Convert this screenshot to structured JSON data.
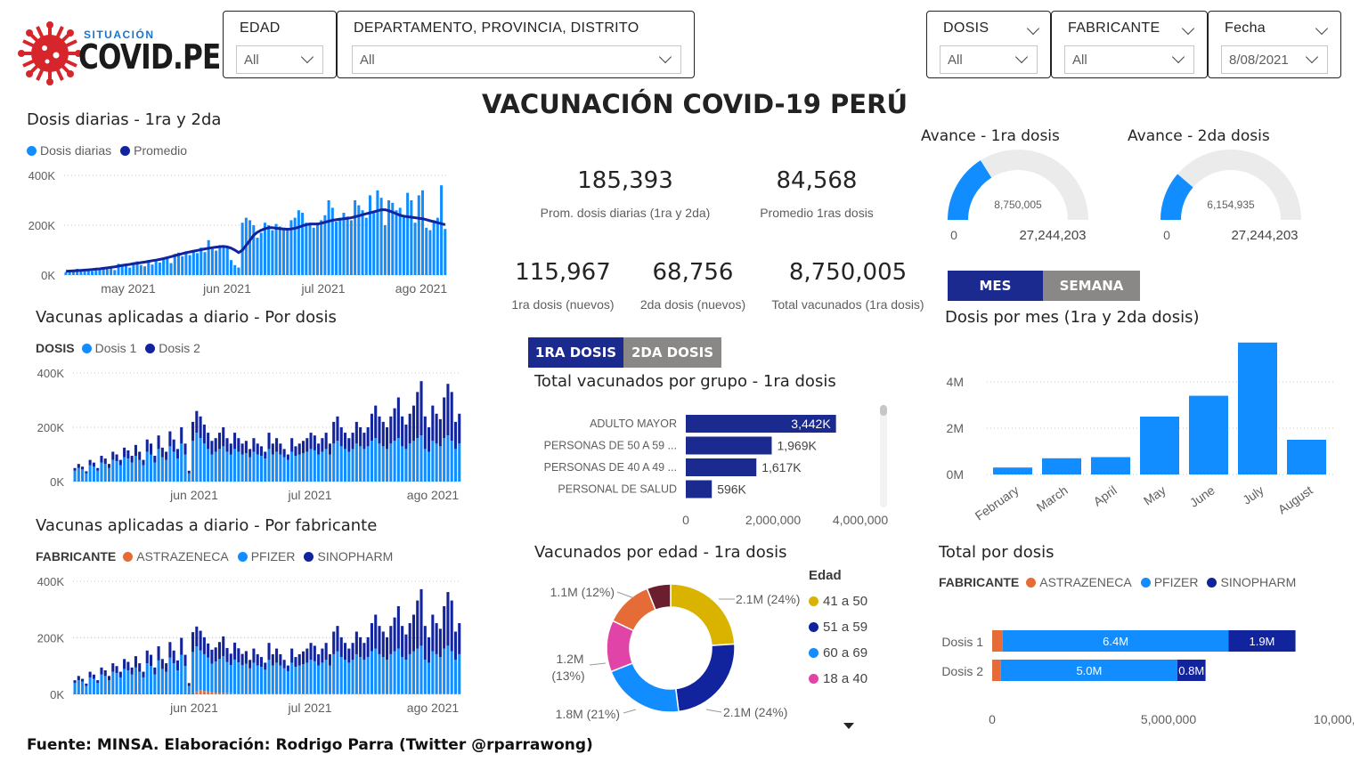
{
  "brand": {
    "top": "SITUACIÓN",
    "name": "COVID.PE"
  },
  "filters": {
    "edad": {
      "label": "EDAD",
      "value": "All"
    },
    "region": {
      "label": "DEPARTAMENTO, PROVINCIA, DISTRITO",
      "value": "All"
    },
    "dosis": {
      "label": "DOSIS",
      "value": "All"
    },
    "fabricante": {
      "label": "FABRICANTE",
      "value": "All"
    },
    "fecha": {
      "label": "Fecha",
      "value": "8/08/2021"
    }
  },
  "page_title": "VACUNACIÓN COVID-19 PERÚ",
  "kpis": {
    "k1": {
      "value": "185,393",
      "label": "Prom. dosis diarias (1ra y 2da)"
    },
    "k2": {
      "value": "84,568",
      "label": "Promedio 1ras dosis"
    },
    "k3": {
      "value": "115,967",
      "label": "1ra dosis (nuevos)"
    },
    "k4": {
      "value": "68,756",
      "label": "2da dosis (nuevos)"
    },
    "k5": {
      "value": "8,750,005",
      "label": "Total vacunados (1ra dosis)"
    }
  },
  "gauges": {
    "g1": {
      "title": "Avance - 1ra dosis",
      "value_label": "8,750,005",
      "min": "0",
      "max": "27,244,203",
      "value": 8750005,
      "max_value": 27244203
    },
    "g2": {
      "title": "Avance - 2da dosis",
      "value_label": "6,154,935",
      "min": "0",
      "max": "27,244,203",
      "value": 6154935,
      "max_value": 27244203
    }
  },
  "toggles": {
    "dosis_tab": {
      "a": "1RA DOSIS",
      "b": "2DA DOSIS"
    },
    "period_tab": {
      "a": "MES",
      "b": "SEMANA"
    }
  },
  "cards": {
    "diarias": {
      "title": "Dosis diarias - 1ra y 2da",
      "leg1": "Dosis diarias",
      "leg2": "Promedio"
    },
    "por_dosis": {
      "title": "Vacunas aplicadas a diario - Por dosis",
      "leg_title": "DOSIS",
      "leg1": "Dosis 1",
      "leg2": "Dosis 2"
    },
    "por_fab": {
      "title": "Vacunas aplicadas a diario - Por fabricante",
      "leg_title": "FABRICANTE",
      "leg1": "ASTRAZENECA",
      "leg2": "PFIZER",
      "leg3": "SINOPHARM"
    },
    "grupo": {
      "title": "Total vacunados por grupo - 1ra dosis"
    },
    "edad": {
      "title": "Vacunados por edad - 1ra dosis",
      "leg_title": "Edad"
    },
    "mes": {
      "title": "Dosis por mes (1ra y 2da dosis)"
    },
    "total": {
      "title": "Total por dosis",
      "leg_title": "FABRICANTE",
      "leg1": "ASTRAZENECA",
      "leg2": "PFIZER",
      "leg3": "SINOPHARM"
    }
  },
  "footer": "Fuente: MINSA. Elaboración: Rodrigo Parra (Twitter @rparrawong)",
  "colors": {
    "light_blue": "#118dff",
    "dark_blue": "#12239e",
    "orange": "#e66c37",
    "gold": "#d9b300",
    "pink": "#e044a7",
    "maroon": "#6b1f2e",
    "bar_navy": "#1b2a8f"
  },
  "chart_data": [
    {
      "id": "diarias",
      "type": "bar",
      "title": "Dosis diarias - 1ra y 2da",
      "ylim": [
        0,
        400000
      ],
      "yticks": [
        "0K",
        "200K",
        "400K"
      ],
      "xticks": [
        "may 2021",
        "jun 2021",
        "jul 2021",
        "ago 2021"
      ],
      "series": [
        {
          "name": "Dosis diarias",
          "values": [
            12,
            20,
            15,
            25,
            18,
            22,
            18,
            16,
            28,
            22,
            30,
            24,
            35,
            20,
            45,
            40,
            38,
            30,
            48,
            55,
            40,
            35,
            60,
            42,
            55,
            50,
            62,
            70,
            48,
            85,
            90,
            75,
            95,
            80,
            100,
            88,
            110,
            92,
            140,
            105,
            98,
            120,
            115,
            110,
            60,
            40,
            30,
            210,
            230,
            220,
            200,
            150,
            170,
            210,
            200,
            180,
            205,
            195,
            190,
            180,
            220,
            230,
            260,
            250,
            210,
            200,
            190,
            210,
            220,
            240,
            300,
            270,
            215,
            230,
            250,
            235,
            220,
            300,
            280,
            260,
            230,
            320,
            250,
            340,
            310,
            200,
            300,
            290,
            260,
            270,
            240,
            330,
            300,
            210,
            320,
            340,
            190,
            180,
            220,
            230,
            360,
            185
          ]
        },
        {
          "name": "Promedio",
          "values": [
            15,
            16,
            17,
            18,
            19,
            20,
            21,
            22,
            24,
            25,
            27,
            29,
            31,
            33,
            36,
            39,
            41,
            43,
            46,
            48,
            50,
            52,
            55,
            58,
            60,
            63,
            66,
            70,
            74,
            78,
            82,
            86,
            90,
            93,
            96,
            99,
            102,
            105,
            108,
            110,
            112,
            114,
            115,
            113,
            108,
            100,
            90,
            100,
            120,
            140,
            160,
            172,
            180,
            186,
            190,
            190,
            188,
            186,
            185,
            184,
            185,
            188,
            192,
            198,
            202,
            205,
            205,
            205,
            208,
            212,
            216,
            220,
            222,
            224,
            226,
            228,
            230,
            234,
            238,
            242,
            246,
            250,
            254,
            258,
            262,
            262,
            258,
            252,
            246,
            240,
            236,
            234,
            232,
            230,
            228,
            226,
            222,
            218,
            214,
            210,
            206,
            202
          ]
        }
      ]
    },
    {
      "id": "por_dosis",
      "type": "bar",
      "title": "Vacunas aplicadas a diario - Por dosis",
      "ylim": [
        0,
        400000
      ],
      "yticks": [
        "0K",
        "200K",
        "400K"
      ],
      "xticks": [
        "jun 2021",
        "jul 2021",
        "ago 2021"
      ],
      "series": [
        {
          "name": "Dosis 1",
          "values": [
            40,
            50,
            45,
            30,
            60,
            55,
            40,
            70,
            65,
            50,
            80,
            75,
            60,
            90,
            85,
            70,
            95,
            80,
            60,
            110,
            100,
            70,
            120,
            90,
            80,
            130,
            110,
            85,
            140,
            100,
            30,
            150,
            180,
            160,
            140,
            120,
            100,
            110,
            120,
            130,
            110,
            100,
            120,
            110,
            100,
            105,
            90,
            110,
            100,
            95,
            85,
            120,
            100,
            110,
            100,
            90,
            80,
            110,
            95,
            100,
            105,
            110,
            120,
            115,
            100,
            110,
            120,
            100,
            140,
            150,
            130,
            120,
            110,
            120,
            140,
            130,
            120,
            130,
            150,
            160,
            140,
            130,
            120,
            140,
            150,
            160,
            130,
            120,
            140,
            150,
            160,
            170,
            120,
            110,
            150,
            140,
            130,
            160,
            170,
            150,
            120,
            140
          ]
        },
        {
          "name": "Dosis 2",
          "values": [
            10,
            15,
            10,
            8,
            20,
            15,
            10,
            25,
            20,
            15,
            30,
            25,
            20,
            35,
            30,
            25,
            40,
            30,
            20,
            45,
            40,
            25,
            50,
            35,
            30,
            55,
            45,
            35,
            60,
            40,
            10,
            70,
            80,
            80,
            70,
            60,
            50,
            50,
            60,
            70,
            50,
            40,
            60,
            50,
            40,
            45,
            30,
            50,
            40,
            35,
            25,
            60,
            40,
            50,
            40,
            30,
            20,
            50,
            35,
            40,
            45,
            50,
            60,
            55,
            40,
            50,
            60,
            40,
            80,
            90,
            70,
            60,
            50,
            60,
            80,
            70,
            60,
            70,
            100,
            120,
            100,
            90,
            80,
            100,
            120,
            150,
            110,
            90,
            110,
            130,
            170,
            200,
            120,
            90,
            130,
            110,
            100,
            150,
            190,
            180,
            100,
            110
          ]
        }
      ]
    },
    {
      "id": "por_fab",
      "type": "bar",
      "title": "Vacunas aplicadas a diario - Por fabricante",
      "ylim": [
        0,
        400000
      ],
      "yticks": [
        "0K",
        "200K",
        "400K"
      ],
      "xticks": [
        "jun 2021",
        "jul 2021",
        "ago 2021"
      ],
      "series": [
        {
          "name": "ASTRAZENECA",
          "values": [
            0,
            0,
            0,
            0,
            0,
            0,
            0,
            0,
            0,
            0,
            0,
            0,
            0,
            0,
            0,
            0,
            0,
            0,
            0,
            0,
            0,
            0,
            0,
            0,
            0,
            0,
            0,
            0,
            0,
            0,
            0,
            0,
            10,
            15,
            12,
            10,
            8,
            6,
            5,
            5,
            4,
            4,
            3,
            3,
            3,
            3,
            2,
            2,
            2,
            2,
            2,
            2,
            2,
            2,
            2,
            2,
            2,
            2,
            2,
            2,
            2,
            2,
            2,
            2,
            2,
            2,
            2,
            2,
            2,
            2,
            2,
            2,
            2,
            2,
            2,
            2,
            2,
            2,
            2,
            2,
            2,
            2,
            2,
            2,
            2,
            2,
            2,
            2,
            2,
            2,
            2,
            2,
            2,
            2,
            2,
            2,
            2,
            2,
            2,
            2,
            2,
            2
          ]
        },
        {
          "name": "PFIZER",
          "values": [
            40,
            50,
            45,
            30,
            60,
            55,
            40,
            70,
            65,
            50,
            80,
            75,
            60,
            90,
            85,
            70,
            95,
            80,
            60,
            110,
            100,
            70,
            120,
            90,
            80,
            130,
            110,
            85,
            140,
            100,
            30,
            150,
            160,
            140,
            130,
            120,
            100,
            110,
            120,
            130,
            110,
            100,
            120,
            110,
            100,
            105,
            90,
            110,
            100,
            95,
            85,
            120,
            100,
            110,
            100,
            90,
            80,
            110,
            95,
            100,
            105,
            110,
            120,
            115,
            100,
            110,
            120,
            100,
            140,
            150,
            130,
            120,
            110,
            120,
            140,
            130,
            120,
            130,
            150,
            160,
            140,
            130,
            120,
            140,
            150,
            160,
            130,
            120,
            140,
            150,
            160,
            170,
            120,
            110,
            150,
            140,
            130,
            160,
            170,
            150,
            120,
            140
          ]
        },
        {
          "name": "SINOPHARM",
          "values": [
            10,
            15,
            10,
            8,
            20,
            15,
            10,
            25,
            20,
            15,
            30,
            25,
            20,
            35,
            30,
            25,
            40,
            30,
            20,
            45,
            40,
            25,
            50,
            35,
            30,
            55,
            45,
            35,
            60,
            40,
            10,
            70,
            70,
            70,
            60,
            50,
            50,
            50,
            60,
            70,
            50,
            40,
            60,
            50,
            40,
            45,
            30,
            50,
            40,
            35,
            25,
            60,
            40,
            50,
            40,
            30,
            20,
            50,
            35,
            40,
            45,
            50,
            60,
            55,
            40,
            50,
            60,
            40,
            80,
            90,
            70,
            60,
            50,
            60,
            80,
            70,
            60,
            70,
            100,
            120,
            100,
            90,
            80,
            100,
            120,
            150,
            110,
            90,
            110,
            130,
            170,
            200,
            120,
            90,
            130,
            110,
            100,
            150,
            190,
            180,
            100,
            110
          ]
        }
      ]
    },
    {
      "id": "grupo",
      "type": "bar",
      "orientation": "horizontal",
      "title": "Total vacunados por grupo - 1ra dosis",
      "categories": [
        "ADULTO MAYOR",
        "PERSONAS DE 50 A 59 ...",
        "PERSONAS DE 40 A 49 ...",
        "PERSONAL DE SALUD"
      ],
      "values": [
        3442000,
        1969000,
        1617000,
        596000
      ],
      "value_labels": [
        "3,442K",
        "1,969K",
        "1,617K",
        "596K"
      ],
      "xlim": [
        0,
        4000000
      ],
      "xticks": [
        "0",
        "2,000,000",
        "4,000,000"
      ]
    },
    {
      "id": "edad",
      "type": "pie",
      "donut": true,
      "title": "Vacunados por edad - 1ra dosis",
      "categories": [
        "41 a 50",
        "51 a 59",
        "60 a 69",
        "18 a 40",
        "",
        ""
      ],
      "values": [
        24,
        24,
        21,
        13,
        12,
        6
      ],
      "slice_labels": [
        "2.1M (24%)",
        "2.1M (24%)",
        "1.8M (21%)",
        "1.2M (13%)",
        "1.1M (12%)",
        ""
      ],
      "legend": [
        "41 a 50",
        "51 a 59",
        "60 a 69",
        "18 a 40"
      ]
    },
    {
      "id": "mes",
      "type": "bar",
      "title": "Dosis por mes (1ra y 2da dosis)",
      "categories": [
        "February",
        "March",
        "April",
        "May",
        "June",
        "July",
        "August"
      ],
      "values": [
        300000,
        700000,
        750000,
        2500000,
        3400000,
        5700000,
        1500000
      ],
      "ylim": [
        0,
        6000000
      ],
      "yticks": [
        "0M",
        "2M",
        "4M"
      ]
    },
    {
      "id": "total",
      "type": "bar",
      "orientation": "horizontal",
      "stacked": true,
      "title": "Total por dosis",
      "categories": [
        "Dosis 1",
        "Dosis 2"
      ],
      "series": [
        {
          "name": "ASTRAZENECA",
          "values": [
            300000,
            250000
          ],
          "labels": [
            "",
            ""
          ]
        },
        {
          "name": "PFIZER",
          "values": [
            6400000,
            5000000
          ],
          "labels": [
            "6.4M",
            "5.0M"
          ]
        },
        {
          "name": "SINOPHARM",
          "values": [
            1900000,
            800000
          ],
          "labels": [
            "1.9M",
            "0.8M"
          ]
        }
      ],
      "xlim": [
        0,
        10000000
      ],
      "xticks": [
        "0",
        "5,000,000",
        "10,000,000"
      ]
    }
  ]
}
